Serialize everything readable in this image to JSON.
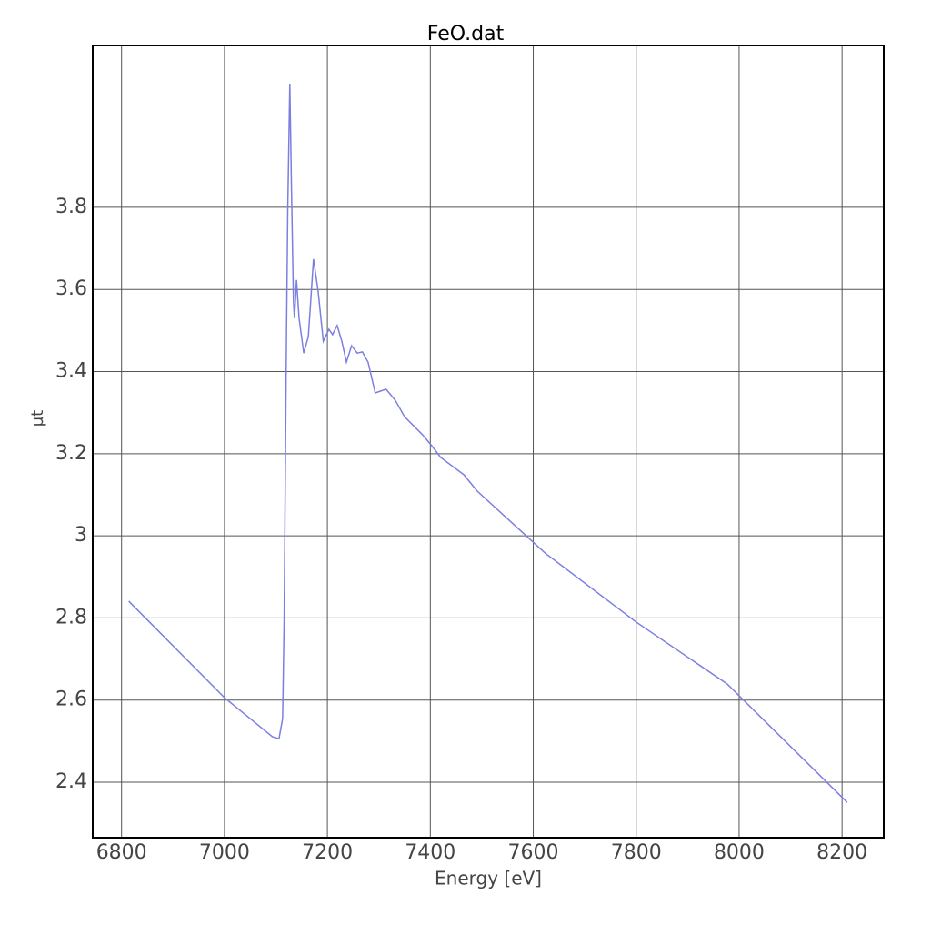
{
  "chart_data": {
    "type": "line",
    "title": "FeO.dat",
    "x_label": "Energy [eV]",
    "y_label": "µt",
    "x": [
      6814,
      7000,
      7093,
      7106,
      7113,
      7116,
      7120,
      7123,
      7127,
      7130,
      7134,
      7136,
      7140,
      7145,
      7154,
      7163,
      7173,
      7182,
      7192,
      7203,
      7210,
      7219,
      7228,
      7237,
      7247,
      7258,
      7268,
      7279,
      7293,
      7314,
      7332,
      7350,
      7385,
      7403,
      7420,
      7465,
      7491,
      7553,
      7623,
      7800,
      7977,
      8210
    ],
    "series": [
      {
        "name": "FeO.dat",
        "color": "#7b7fe0",
        "values": [
          2.841,
          2.606,
          2.511,
          2.506,
          2.555,
          2.799,
          3.419,
          3.795,
          4.101,
          3.862,
          3.574,
          3.53,
          3.623,
          3.53,
          3.445,
          3.485,
          3.674,
          3.596,
          3.474,
          3.503,
          3.49,
          3.512,
          3.474,
          3.423,
          3.463,
          3.445,
          3.448,
          3.423,
          3.348,
          3.357,
          3.33,
          3.29,
          3.246,
          3.219,
          3.191,
          3.149,
          3.109,
          3.038,
          2.958,
          2.79,
          2.639,
          2.351
        ]
      }
    ],
    "xlim": [
      6744,
      8281
    ],
    "ylim": [
      2.265,
      4.194
    ],
    "xticks": [
      6800,
      7000,
      7200,
      7400,
      7600,
      7800,
      8000,
      8200
    ],
    "yticks": [
      2.4,
      2.6,
      2.8,
      3,
      3.2,
      3.4,
      3.6,
      3.8
    ],
    "grid": true
  }
}
